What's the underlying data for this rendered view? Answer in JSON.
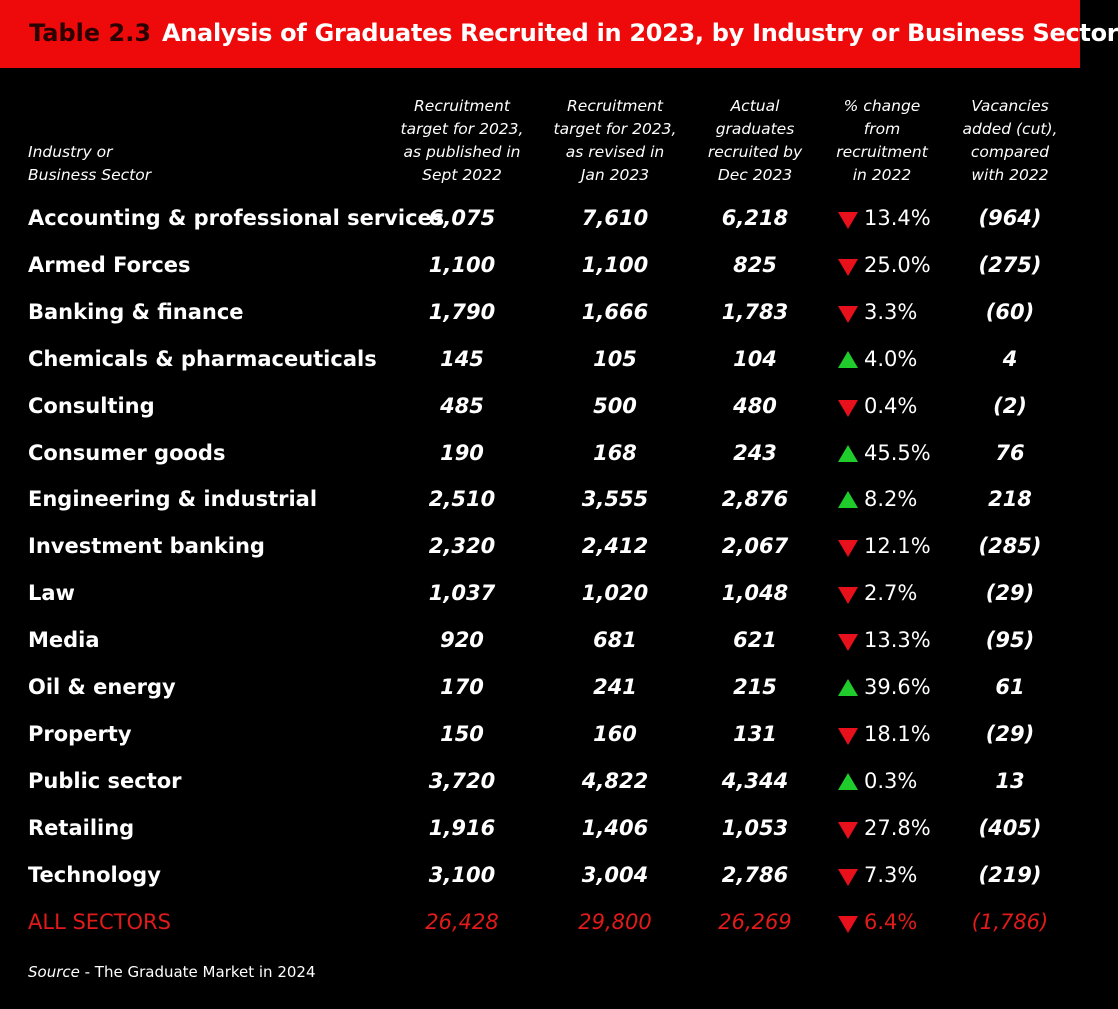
{
  "banner": {
    "number": "Table 2.3",
    "title": "Analysis of Graduates Recruited in 2023, by Industry or Business Sector"
  },
  "headers": {
    "sector": [
      "Industry or",
      "Business Sector"
    ],
    "target_published": [
      "Recruitment",
      "target for 2023,",
      "as published in",
      "Sept 2022"
    ],
    "target_revised": [
      "Recruitment",
      "target for 2023,",
      "as revised in",
      "Jan 2023"
    ],
    "actual": [
      "Actual",
      "graduates",
      "recruited by",
      "Dec 2023"
    ],
    "pct_change": [
      "% change",
      "from",
      "recruitment",
      "in 2022"
    ],
    "vacancies": [
      "Vacancies",
      "added (cut),",
      "compared",
      "with 2022"
    ]
  },
  "rows": [
    {
      "sector": "Accounting & professional services",
      "published": "6,075",
      "revised": "7,610",
      "actual": "6,218",
      "direction": "down",
      "change": "13.4%",
      "vacancies": "(964)"
    },
    {
      "sector": "Armed Forces",
      "published": "1,100",
      "revised": "1,100",
      "actual": "825",
      "direction": "down",
      "change": "25.0%",
      "vacancies": "(275)"
    },
    {
      "sector": "Banking & finance",
      "published": "1,790",
      "revised": "1,666",
      "actual": "1,783",
      "direction": "down",
      "change": "3.3%",
      "vacancies": "(60)"
    },
    {
      "sector": "Chemicals & pharmaceuticals",
      "published": "145",
      "revised": "105",
      "actual": "104",
      "direction": "up",
      "change": "4.0%",
      "vacancies": "4"
    },
    {
      "sector": "Consulting",
      "published": "485",
      "revised": "500",
      "actual": "480",
      "direction": "down",
      "change": "0.4%",
      "vacancies": "(2)"
    },
    {
      "sector": "Consumer goods",
      "published": "190",
      "revised": "168",
      "actual": "243",
      "direction": "up",
      "change": "45.5%",
      "vacancies": "76"
    },
    {
      "sector": "Engineering & industrial",
      "published": "2,510",
      "revised": "3,555",
      "actual": "2,876",
      "direction": "up",
      "change": "8.2%",
      "vacancies": "218"
    },
    {
      "sector": "Investment banking",
      "published": "2,320",
      "revised": "2,412",
      "actual": "2,067",
      "direction": "down",
      "change": "12.1%",
      "vacancies": "(285)"
    },
    {
      "sector": "Law",
      "published": "1,037",
      "revised": "1,020",
      "actual": "1,048",
      "direction": "down",
      "change": "2.7%",
      "vacancies": "(29)"
    },
    {
      "sector": "Media",
      "published": "920",
      "revised": "681",
      "actual": "621",
      "direction": "down",
      "change": "13.3%",
      "vacancies": "(95)"
    },
    {
      "sector": "Oil & energy",
      "published": "170",
      "revised": "241",
      "actual": "215",
      "direction": "up",
      "change": "39.6%",
      "vacancies": "61"
    },
    {
      "sector": "Property",
      "published": "150",
      "revised": "160",
      "actual": "131",
      "direction": "down",
      "change": "18.1%",
      "vacancies": "(29)"
    },
    {
      "sector": "Public sector",
      "published": "3,720",
      "revised": "4,822",
      "actual": "4,344",
      "direction": "up",
      "change": "0.3%",
      "vacancies": "13"
    },
    {
      "sector": "Retailing",
      "published": "1,916",
      "revised": "1,406",
      "actual": "1,053",
      "direction": "down",
      "change": "27.8%",
      "vacancies": "(405)"
    },
    {
      "sector": "Technology",
      "published": "3,100",
      "revised": "3,004",
      "actual": "2,786",
      "direction": "down",
      "change": "7.3%",
      "vacancies": "(219)"
    }
  ],
  "total": {
    "sector": "ALL SECTORS",
    "published": "26,428",
    "revised": "29,800",
    "actual": "26,269",
    "direction": "down",
    "change": "6.4%",
    "vacancies": "(1,786)"
  },
  "source": {
    "label": "Source",
    "text": " - The Graduate Market in 2024"
  },
  "colors": {
    "banner": "#ee0a0a",
    "background": "#000000",
    "down_arrow": "#e8101a",
    "up_arrow": "#1fcc2c",
    "total_text": "#e11a1a"
  }
}
